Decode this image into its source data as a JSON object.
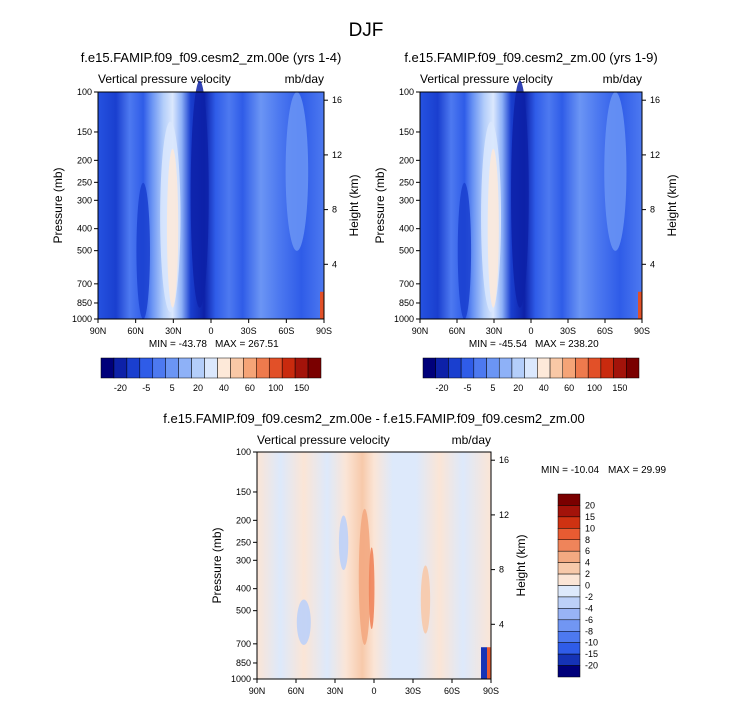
{
  "page_title": "DJF",
  "chart_data": [
    {
      "type": "heatmap",
      "title": "f.e15.FAMIP.f09_f09.cesm2_zm.00e (yrs 1-4)",
      "left_label": "Vertical pressure velocity",
      "right_label": "mb/day",
      "xlabel": "",
      "ylabel": "Pressure (mb)",
      "ylabel_right": "Height (km)",
      "x_ticks": [
        "90N",
        "60N",
        "30N",
        "0",
        "30S",
        "60S",
        "90S"
      ],
      "y_ticks": [
        "100",
        "150",
        "200",
        "250",
        "300",
        "400",
        "500",
        "700",
        "850",
        "1000"
      ],
      "y_right_ticks": [
        "16",
        "12",
        "8",
        "4"
      ],
      "min_label": "MIN = -43.78",
      "max_label": "MAX = 267.51",
      "colorbar_labels": [
        "-20",
        "-5",
        "5",
        "20",
        "40",
        "60",
        "100",
        "150"
      ]
    },
    {
      "type": "heatmap",
      "title": "f.e15.FAMIP.f09_f09.cesm2_zm.00 (yrs 1-9)",
      "left_label": "Vertical pressure velocity",
      "right_label": "mb/day",
      "xlabel": "",
      "ylabel": "Pressure (mb)",
      "ylabel_right": "Height (km)",
      "x_ticks": [
        "90N",
        "60N",
        "30N",
        "0",
        "30S",
        "60S",
        "90S"
      ],
      "y_ticks": [
        "100",
        "150",
        "200",
        "250",
        "300",
        "400",
        "500",
        "700",
        "850",
        "1000"
      ],
      "y_right_ticks": [
        "16",
        "12",
        "8",
        "4"
      ],
      "min_label": "MIN = -45.54",
      "max_label": "MAX = 238.20",
      "colorbar_labels": [
        "-20",
        "-5",
        "5",
        "20",
        "40",
        "60",
        "100",
        "150"
      ]
    },
    {
      "type": "heatmap",
      "title": "f.e15.FAMIP.f09_f09.cesm2_zm.00e - f.e15.FAMIP.f09_f09.cesm2_zm.00",
      "left_label": "Vertical pressure velocity",
      "right_label": "mb/day",
      "xlabel": "",
      "ylabel": "Pressure (mb)",
      "ylabel_right": "Height (km)",
      "x_ticks": [
        "90N",
        "60N",
        "30N",
        "0",
        "30S",
        "60S",
        "90S"
      ],
      "y_ticks": [
        "100",
        "150",
        "200",
        "250",
        "300",
        "400",
        "500",
        "700",
        "850",
        "1000"
      ],
      "y_right_ticks": [
        "16",
        "12",
        "8",
        "4"
      ],
      "min_label": "MIN = -10.04",
      "max_label": "MAX = 29.99",
      "colorbar_labels": [
        "20",
        "15",
        "10",
        "8",
        "6",
        "4",
        "2",
        "0",
        "-2",
        "-4",
        "-6",
        "-8",
        "-10",
        "-15",
        "-20"
      ]
    }
  ],
  "colors": {
    "full_palette": [
      "#00007a",
      "#0d21a8",
      "#1a3fcf",
      "#2f5ce8",
      "#4d79f0",
      "#6b95f4",
      "#8eb1f7",
      "#b4cefa",
      "#dbe8fd",
      "#fde9d9",
      "#f9c8a6",
      "#f5a477",
      "#ee7a4d",
      "#e25028",
      "#c92a0e",
      "#a3130a",
      "#7a0000"
    ],
    "diff_palette": [
      "#00007a",
      "#1533b6",
      "#2f5ce8",
      "#4d79f0",
      "#7196f3",
      "#98b3f6",
      "#bcd0f8",
      "#dde9fb",
      "#fbe5d6",
      "#f7c9aa",
      "#f3a981",
      "#ef845a",
      "#e85b32",
      "#cf3212",
      "#a3130a",
      "#7a0000"
    ]
  }
}
